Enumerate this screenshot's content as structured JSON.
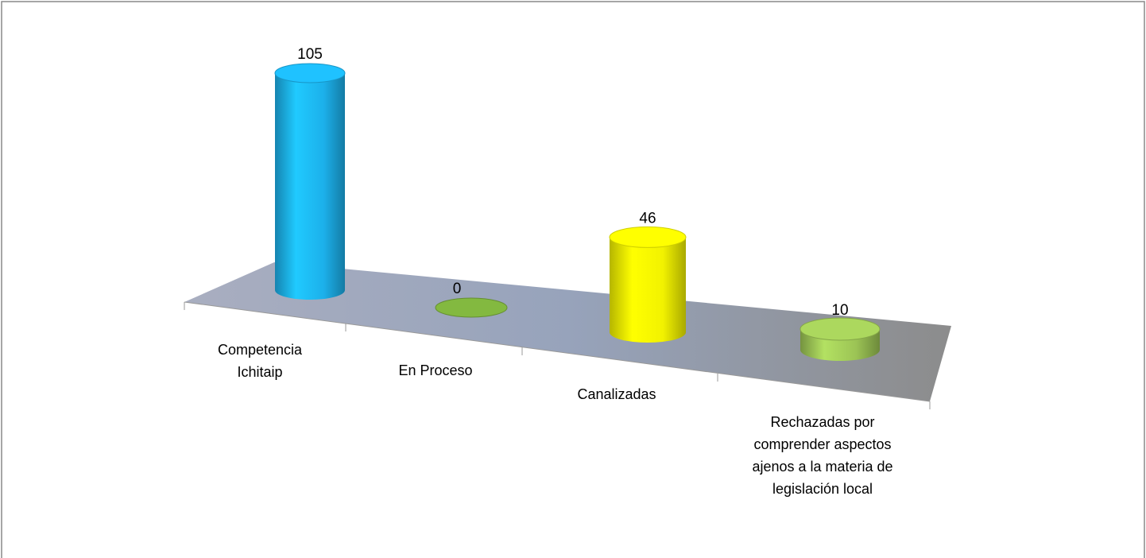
{
  "chart_data": {
    "type": "bar3d",
    "categories": [
      "Competencia Ichitaip",
      "En Proceso",
      "Canalizadas",
      "Rechazadas por comprender aspectos ajenos a la materia de legislación local"
    ],
    "values": [
      105,
      0,
      46,
      10
    ],
    "colors": [
      "#1cb0ea",
      "#77a83a",
      "#f2f200",
      "#9cc455"
    ]
  }
}
